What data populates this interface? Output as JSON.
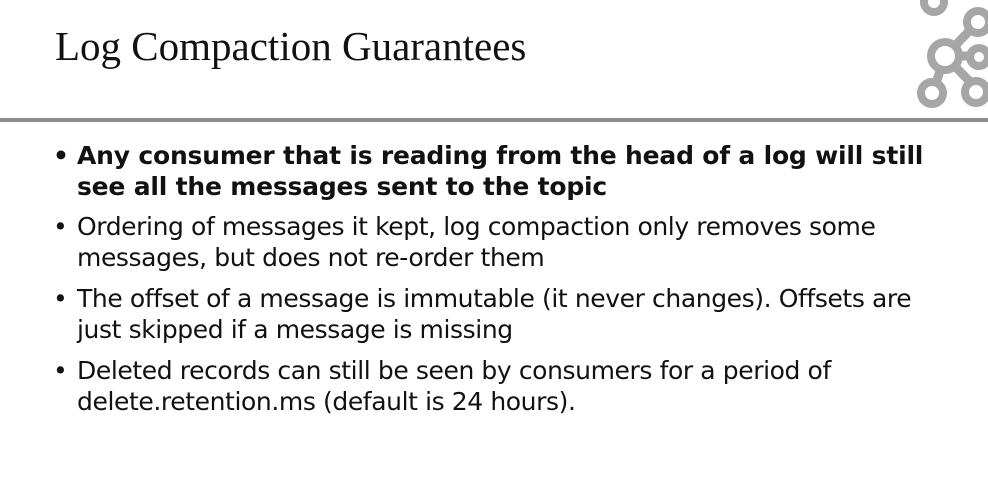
{
  "slide": {
    "title": "Log Compaction Guarantees",
    "bullet_symbol": "•",
    "bullets": [
      "Any consumer that is reading from the head of a log will still see all the messages sent to the topic",
      "Ordering of messages it kept, log compaction only removes some messages, but does not re-order them",
      "The offset of a message is immutable (it never changes). Offsets are just skipped if a message is missing",
      "Deleted records can still be seen by consumers for a period of delete.retention.ms (default is 24 hours)."
    ]
  },
  "logo": {
    "icon": "kafka-logo-icon",
    "color": "#a6a6a6"
  },
  "colors": {
    "divider": "#8c8c8c",
    "text": "#111111"
  }
}
